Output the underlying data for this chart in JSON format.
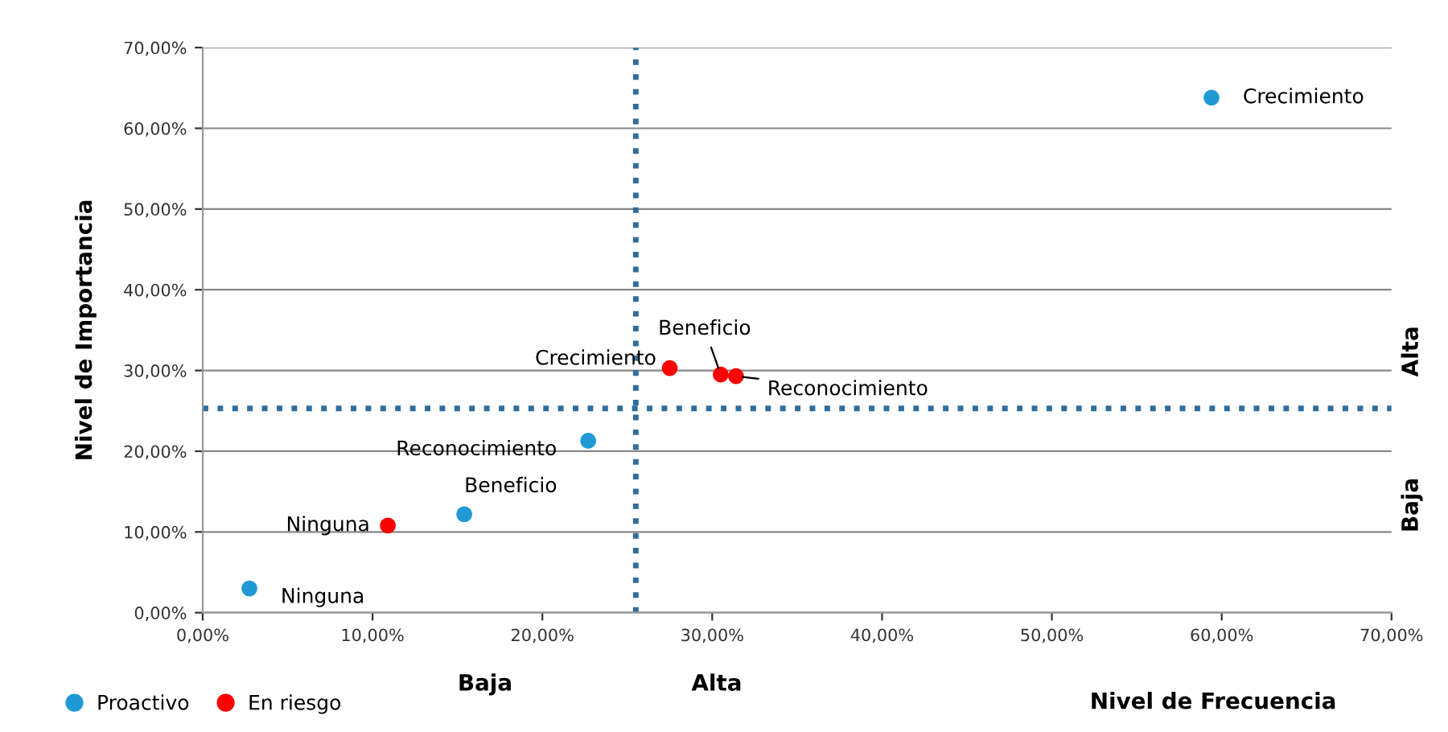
{
  "chart_data": {
    "type": "scatter",
    "xlabel": "Nivel de Frecuencia",
    "ylabel": "Nivel de Importancia",
    "xlim": [
      0,
      70
    ],
    "ylim": [
      0,
      70
    ],
    "xticks": [
      {
        "value": 0,
        "label": "0,00%"
      },
      {
        "value": 10,
        "label": "10,00%"
      },
      {
        "value": 20,
        "label": "20,00%"
      },
      {
        "value": 30,
        "label": "30,00%"
      },
      {
        "value": 40,
        "label": "40,00%"
      },
      {
        "value": 50,
        "label": "50,00%"
      },
      {
        "value": 60,
        "label": "60,00%"
      },
      {
        "value": 70,
        "label": "70,00%"
      }
    ],
    "yticks": [
      {
        "value": 0,
        "label": "0,00%"
      },
      {
        "value": 10,
        "label": "10,00%"
      },
      {
        "value": 20,
        "label": "20,00%"
      },
      {
        "value": 30,
        "label": "30,00%"
      },
      {
        "value": 40,
        "label": "40,00%"
      },
      {
        "value": 50,
        "label": "50,00%"
      },
      {
        "value": 60,
        "label": "60,00%"
      },
      {
        "value": 70,
        "label": "70,00%"
      }
    ],
    "grid": "y",
    "legend": "bottom left",
    "marker": "circle",
    "series": [
      {
        "name": "Proactivo",
        "color": "#1f9ad6",
        "x": [
          2.75,
          15.4,
          22.7,
          59.4
        ],
        "values": [
          3.0,
          12.2,
          21.3,
          63.8
        ]
      },
      {
        "name": "En riesgo",
        "color": "#ff0000",
        "x": [
          10.9,
          27.5,
          30.5,
          31.4
        ],
        "values": [
          10.8,
          30.3,
          29.5,
          29.3
        ]
      }
    ],
    "ref_lines": [
      {
        "axis": "x",
        "value": 25.5,
        "color": "#2e6e9e",
        "line_style": "dotted"
      },
      {
        "axis": "y",
        "value": 25.3,
        "color": "#2e6e9e",
        "line_style": "dotted"
      }
    ],
    "annotations": [
      {
        "text": "Ninguna",
        "x": 2.75,
        "y": 3.0
      },
      {
        "text": "Beneficio",
        "x": 15.4,
        "y": 12.2
      },
      {
        "text": "Reconocimiento",
        "x": 22.7,
        "y": 21.3
      },
      {
        "text": "Crecimiento",
        "x": 59.4,
        "y": 63.8
      },
      {
        "text": "Ninguna",
        "x": 10.9,
        "y": 10.8
      },
      {
        "text": "Crecimiento",
        "x": 27.5,
        "y": 30.3
      },
      {
        "text": "Beneficio",
        "x": 30.5,
        "y": 29.5
      },
      {
        "text": "Reconocimiento",
        "x": 31.4,
        "y": 29.3
      },
      "Baja",
      "Alta",
      "Alta",
      "Baja"
    ]
  }
}
